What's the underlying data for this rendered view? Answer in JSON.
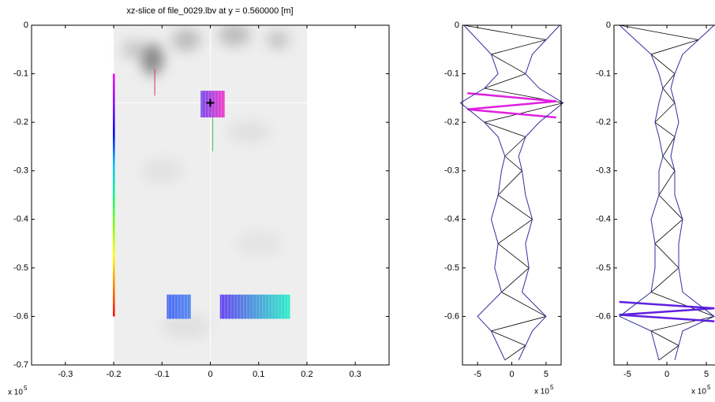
{
  "chart_data": [
    {
      "type": "image",
      "title": "xz-slice of file_0029.lbv at y = 0.560000 [m]",
      "xlim": [
        -0.37,
        0.37
      ],
      "ylim": [
        -0.7,
        0
      ],
      "xticks": [
        -0.3,
        -0.2,
        -0.1,
        0,
        0.1,
        0.2,
        0.3
      ],
      "yticks": [
        0,
        -0.1,
        -0.2,
        -0.3,
        -0.4,
        -0.5,
        -0.6,
        -0.7
      ],
      "image_x": [
        -0.2,
        0.2
      ],
      "colorbar": {
        "x": -0.2,
        "z": [
          -0.1,
          -0.6
        ]
      },
      "regions": [
        {
          "x": [
            -0.02,
            0.03
          ],
          "z": [
            -0.135,
            -0.19
          ],
          "colors": [
            "#7a4cf0",
            "#f040c8"
          ]
        },
        {
          "x": [
            -0.09,
            -0.04
          ],
          "z": [
            -0.555,
            -0.605
          ],
          "colors": [
            "#4a6cf0",
            "#5a8af0"
          ]
        },
        {
          "x": [
            0.02,
            0.165
          ],
          "z": [
            -0.555,
            -0.605
          ],
          "colors": [
            "#6a44f0",
            "#30f0c8"
          ]
        }
      ],
      "lines": [
        {
          "x": -0.115,
          "z": [
            -0.09,
            -0.145
          ],
          "color": "#e03070"
        },
        {
          "x": 0.005,
          "z": [
            -0.19,
            -0.26
          ],
          "color": "#40c060"
        }
      ],
      "cursor": [
        0,
        -0.16
      ],
      "x_exponent_label": "x 10",
      "x_exponent": "5"
    },
    {
      "type": "line",
      "xlim": [
        -7.2,
        7.2
      ],
      "ylim": [
        -0.7,
        0
      ],
      "xticks": [
        -5,
        0,
        5
      ],
      "yticks": [
        0,
        -0.1,
        -0.2,
        -0.3,
        -0.4,
        -0.5,
        -0.6
      ],
      "z": [
        0,
        -0.03,
        -0.06,
        -0.1,
        -0.13,
        -0.16,
        -0.2,
        -0.23,
        -0.27,
        -0.3,
        -0.35,
        -0.4,
        -0.45,
        -0.5,
        -0.55,
        -0.6,
        -0.63,
        -0.66,
        -0.69
      ],
      "values": [
        7,
        5,
        3,
        2,
        4,
        7.5,
        4,
        2,
        1,
        1.5,
        2,
        3,
        2,
        2.5,
        1.5,
        5,
        3,
        2,
        1
      ],
      "color": "#3030a0",
      "highlight": {
        "z": [
          -0.14,
          -0.19
        ],
        "color": "#e020e0"
      },
      "x_exponent_label": "x 10",
      "x_exponent": "5"
    },
    {
      "type": "line",
      "xlim": [
        -6.7,
        6.7
      ],
      "ylim": [
        -0.7,
        0
      ],
      "xticks": [
        -5,
        0,
        5
      ],
      "yticks": [
        0,
        -0.1,
        -0.2,
        -0.3,
        -0.4,
        -0.5,
        -0.6
      ],
      "z": [
        0,
        -0.03,
        -0.06,
        -0.1,
        -0.13,
        -0.16,
        -0.2,
        -0.23,
        -0.27,
        -0.3,
        -0.35,
        -0.4,
        -0.45,
        -0.5,
        -0.55,
        -0.6,
        -0.63,
        -0.66,
        -0.69
      ],
      "values": [
        6,
        4,
        2,
        1,
        0.5,
        1,
        1.5,
        1,
        0.5,
        1,
        1,
        2,
        1.5,
        1.5,
        2,
        6,
        2,
        1.5,
        1
      ],
      "color": "#3030a0",
      "highlight": {
        "z": [
          -0.57,
          -0.61
        ],
        "color": "#6020e0"
      },
      "x_exponent_label": "x 10",
      "x_exponent": "5"
    }
  ]
}
